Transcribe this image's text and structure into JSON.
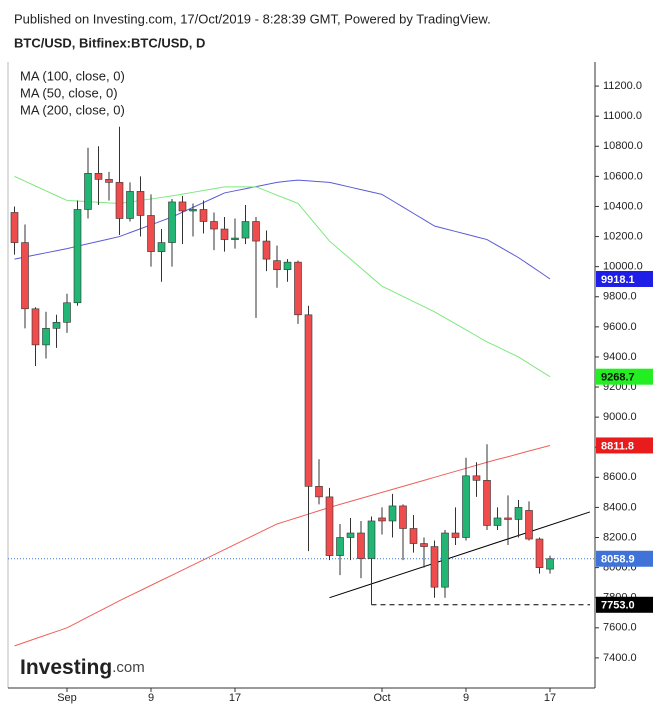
{
  "chart_data": {
    "type": "candlestick",
    "header": "Published on Investing.com, 17/Oct/2019 - 8:28:39 GMT, Powered by TradingView.",
    "title": "BTC/USD, Bitfinex:BTC/USD, D",
    "logo": {
      "name": "Investing",
      "suffix": ".com"
    },
    "categories": [
      null,
      null,
      null,
      null,
      null,
      "Sep",
      null,
      null,
      null,
      null,
      null,
      null,
      null,
      "9",
      null,
      null,
      null,
      null,
      null,
      null,
      null,
      "17",
      null,
      null,
      null,
      null,
      null,
      null,
      null,
      null,
      null,
      null,
      null,
      null,
      null,
      "Oct",
      null,
      null,
      null,
      null,
      null,
      null,
      null,
      "9",
      null,
      null,
      null,
      null,
      null,
      null,
      null,
      "17"
    ],
    "open": [
      10360,
      10160,
      9720,
      9480,
      9590,
      9630,
      9760,
      10380,
      10620,
      10580,
      10560,
      10320,
      10500,
      10340,
      10100,
      10160,
      10430,
      10370,
      10380,
      10300,
      10250,
      10180,
      10190,
      10300,
      10170,
      10040,
      9980,
      10030,
      9680,
      8540,
      8470,
      8080,
      8200,
      8230,
      8060,
      8330,
      8310,
      8410,
      8260,
      8160,
      8140,
      7870,
      8230,
      8200,
      8610,
      8580,
      8280,
      8330,
      8320,
      8380,
      8190,
      7990
    ],
    "high": [
      10400,
      10280,
      9730,
      9700,
      9680,
      9820,
      10440,
      10790,
      10800,
      10630,
      10930,
      10560,
      10600,
      10480,
      10250,
      10450,
      10470,
      10420,
      10440,
      10360,
      10330,
      10320,
      10410,
      10330,
      10240,
      10140,
      10050,
      10040,
      9740,
      8720,
      8530,
      8290,
      8330,
      8310,
      8340,
      8400,
      8490,
      8420,
      8350,
      8200,
      8180,
      8250,
      8400,
      8730,
      8700,
      8820,
      8400,
      8480,
      8450,
      8440,
      8200,
      8080
    ],
    "low": [
      10080,
      9590,
      9340,
      9390,
      9460,
      9560,
      9740,
      10320,
      10410,
      10440,
      10210,
      10300,
      10200,
      10000,
      9900,
      10000,
      10150,
      10200,
      10220,
      10110,
      10100,
      10120,
      10150,
      9660,
      9970,
      9860,
      9900,
      9620,
      8110,
      8420,
      8050,
      7950,
      8050,
      7930,
      7753,
      8220,
      8200,
      8050,
      8100,
      8000,
      7800,
      7800,
      8150,
      8180,
      8470,
      8250,
      8250,
      8150,
      8200,
      8180,
      7960,
      7960
    ],
    "close": [
      10160,
      9720,
      9480,
      9590,
      9630,
      9760,
      10380,
      10620,
      10580,
      10560,
      10320,
      10500,
      10340,
      10100,
      10160,
      10430,
      10370,
      10380,
      10300,
      10250,
      10180,
      10190,
      10300,
      10170,
      10050,
      9980,
      10030,
      9680,
      8540,
      8470,
      8080,
      8200,
      8230,
      8060,
      8310,
      8310,
      8410,
      8260,
      8160,
      8140,
      7870,
      8230,
      8200,
      8610,
      8580,
      8280,
      8330,
      8320,
      8400,
      8190,
      8000,
      8058.9
    ],
    "up_color": "#22b573",
    "down_color": "#ef4d4d",
    "series": [
      {
        "name": "MA (100, close, 0)",
        "color": "#5b5bd6",
        "values": [
          10050,
          10064,
          10078,
          10092,
          10106,
          10120,
          10136,
          10152,
          10168,
          10184,
          10200,
          10226,
          10252,
          10278,
          10304,
          10330,
          10362,
          10394,
          10426,
          10458,
          10490,
          10504,
          10518,
          10532,
          10546,
          10560,
          10568,
          10575,
          10570,
          10565,
          10560,
          10544,
          10528,
          10512,
          10496,
          10480,
          10438,
          10396,
          10354,
          10312,
          10270,
          10252,
          10234,
          10216,
          10198,
          10180,
          10140,
          10100,
          10060,
          10013,
          9966,
          9918.1
        ]
      },
      {
        "name": "MA (50, close, 0)",
        "color": "#7ee87e",
        "values": [
          10600,
          10568,
          10536,
          10504,
          10472,
          10440,
          10436,
          10432,
          10428,
          10424,
          10420,
          10430,
          10440,
          10450,
          10460,
          10470,
          10482,
          10494,
          10506,
          10518,
          10530,
          10530,
          10530,
          10530,
          10503,
          10475,
          10448,
          10420,
          10337,
          10253,
          10170,
          10110,
          10050,
          9990,
          9930,
          9870,
          9836,
          9802,
          9768,
          9734,
          9700,
          9660,
          9620,
          9580,
          9540,
          9500,
          9467,
          9433,
          9400,
          9356,
          9312,
          9268.7
        ]
      },
      {
        "name": "MA (200, close, 0)",
        "color": "#f0605a",
        "values": [
          7480,
          7504,
          7528,
          7552,
          7576,
          7600,
          7636,
          7672,
          7708,
          7744,
          7780,
          7814,
          7848,
          7882,
          7916,
          7950,
          7984,
          8018,
          8052,
          8086,
          8120,
          8154,
          8188,
          8222,
          8256,
          8290,
          8312,
          8334,
          8356,
          8378,
          8400,
          8420,
          8440,
          8460,
          8480,
          8500,
          8520,
          8540,
          8560,
          8580,
          8600,
          8620,
          8640,
          8660,
          8680,
          8700,
          8719,
          8737,
          8756,
          8775,
          8793,
          8811.8
        ]
      }
    ],
    "price_tags": [
      {
        "value": 9918.1,
        "color": "#1e1ee6",
        "text_color": "#ffffff"
      },
      {
        "value": 9268.7,
        "color": "#22ee22",
        "text_color": "#111111"
      },
      {
        "value": 8811.8,
        "color": "#e81c1c",
        "text_color": "#ffffff"
      },
      {
        "value": 8058.9,
        "color": "#3f73d8",
        "text_color": "#ffffff"
      },
      {
        "value": 7753,
        "label": "7753.0",
        "color": "#000000",
        "text_color": "#ffffff"
      }
    ],
    "last_price": 8058.9,
    "support": {
      "value": 7753,
      "from": 34
    },
    "trendline": {
      "from": [
        30,
        7800
      ],
      "to": [
        54.8,
        8370
      ]
    },
    "ylim": [
      7200,
      11360
    ],
    "yticks": [
      {
        "value": 7400,
        "label": "7400.0"
      },
      {
        "value": 7600,
        "label": "7600.0"
      },
      {
        "value": 7800,
        "label": "7800.0"
      },
      {
        "value": 8000,
        "label": "8000.0"
      },
      {
        "value": 8200,
        "label": "8200.0"
      },
      {
        "value": 8400,
        "label": "8400.0"
      },
      {
        "value": 8600,
        "label": "8600.0"
      },
      {
        "value": 8800,
        "label": "8800.0"
      },
      {
        "value": 9000,
        "label": "9000.0"
      },
      {
        "value": 9200,
        "label": "9200.0"
      },
      {
        "value": 9400,
        "label": "9400.0"
      },
      {
        "value": 9600,
        "label": "9600.0"
      },
      {
        "value": 9800,
        "label": "9800.0"
      },
      {
        "value": 10000,
        "label": "10000.0"
      },
      {
        "value": 10200,
        "label": "10200.0"
      },
      {
        "value": 10400,
        "label": "10400.0"
      },
      {
        "value": 10600,
        "label": "10600.0"
      },
      {
        "value": 10800,
        "label": "10800.0"
      },
      {
        "value": 11000,
        "label": "11000.0"
      },
      {
        "value": 11200,
        "label": "11200.0"
      }
    ]
  }
}
